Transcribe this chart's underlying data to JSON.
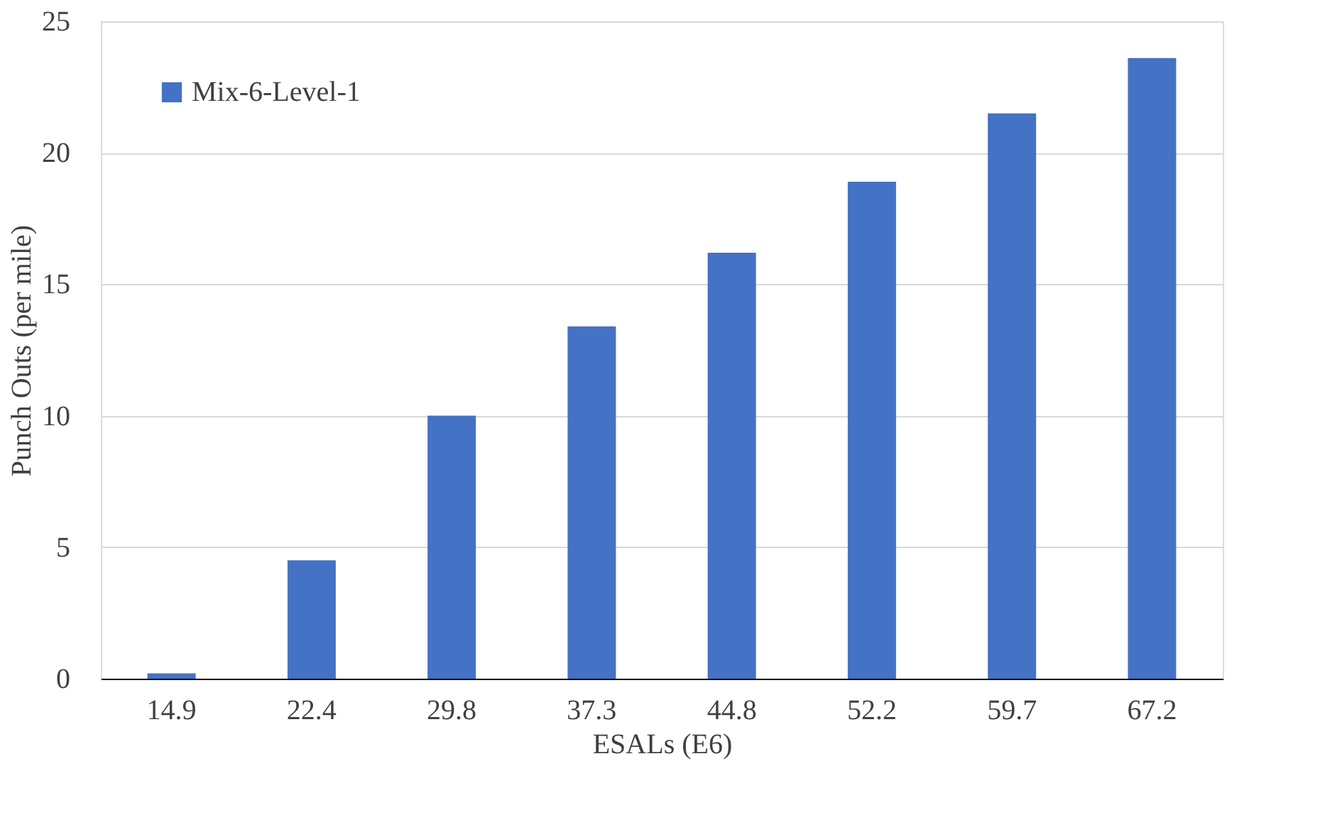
{
  "chart_data": {
    "type": "bar",
    "xlabel": "ESALs (E6)",
    "ylabel": "Punch Outs (per mile)",
    "categories": [
      "14.9",
      "22.4",
      "29.8",
      "37.3",
      "44.8",
      "52.2",
      "59.7",
      "67.2"
    ],
    "series": [
      {
        "name": "Mix-6-Level-1",
        "color": "#4472c4",
        "values": [
          0.2,
          4.5,
          10.0,
          13.4,
          16.2,
          18.9,
          21.5,
          23.6
        ]
      }
    ],
    "ylim": [
      0,
      25
    ],
    "yticks": [
      0,
      5,
      10,
      15,
      20,
      25
    ],
    "grid": "y",
    "legend": "top left"
  }
}
